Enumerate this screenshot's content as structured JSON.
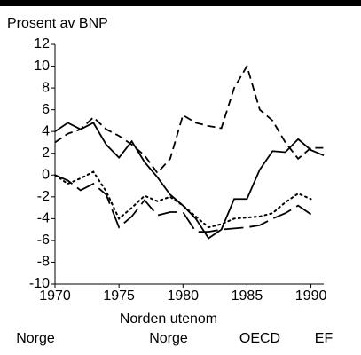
{
  "chart_data": {
    "type": "line",
    "y_label": "Prosent av BNP",
    "x": [
      1970,
      1971,
      1972,
      1973,
      1974,
      1975,
      1976,
      1977,
      1978,
      1979,
      1980,
      1981,
      1982,
      1983,
      1984,
      1985,
      1986,
      1987,
      1988,
      1989,
      1990,
      1991
    ],
    "series": [
      {
        "name": "Norge",
        "color": "#000000",
        "dash": "solid",
        "values": [
          4,
          4.8,
          4.2,
          4.8,
          2.8,
          1.6,
          3.1,
          1.2,
          -0.2,
          -1.8,
          -2.8,
          -4,
          -5.8,
          -5,
          -2.2,
          -2.2,
          0.5,
          2.2,
          2.1,
          3.3,
          2.3,
          1.8
        ]
      },
      {
        "name": "Norden utenom Norge",
        "color": "#000000",
        "dash": "dashed",
        "values": [
          3,
          3.8,
          4.2,
          5.3,
          4.2,
          3.6,
          2.8,
          1.8,
          0.2,
          1.5,
          5.5,
          4.8,
          4.5,
          4.3,
          8,
          10,
          6,
          5,
          3,
          1.5,
          2.5,
          2.5
        ]
      },
      {
        "name": "OECD",
        "color": "#000000",
        "dash": "longdash",
        "values": [
          0,
          -0.5,
          -1.4,
          -0.8,
          -1.8,
          -4.8,
          -3.8,
          -2.3,
          -3.7,
          -3.4,
          -3.4,
          -5.2,
          -5.2,
          -5,
          -4.9,
          -4.8,
          -4.6,
          -4,
          -3.5,
          -2.8,
          -3.6,
          null
        ]
      },
      {
        "name": "EF",
        "color": "#000000",
        "dash": "dotted",
        "values": [
          0,
          -0.8,
          -0.3,
          0.3,
          -1.5,
          -4,
          -3,
          -1.9,
          -2.4,
          -2,
          -2.8,
          -3.8,
          -4.8,
          -4.5,
          -4,
          -3.9,
          -3.8,
          -3.5,
          -2.5,
          -1.7,
          -2.2,
          null
        ]
      }
    ],
    "xlim": [
      1970,
      1991
    ],
    "xticks": [
      1970,
      1975,
      1980,
      1985,
      1990
    ],
    "ylim": [
      -10,
      12
    ],
    "yticks": [
      -10,
      -8,
      -6,
      -4,
      -2,
      0,
      2,
      4,
      6,
      8,
      10,
      12
    ],
    "grid": false
  }
}
